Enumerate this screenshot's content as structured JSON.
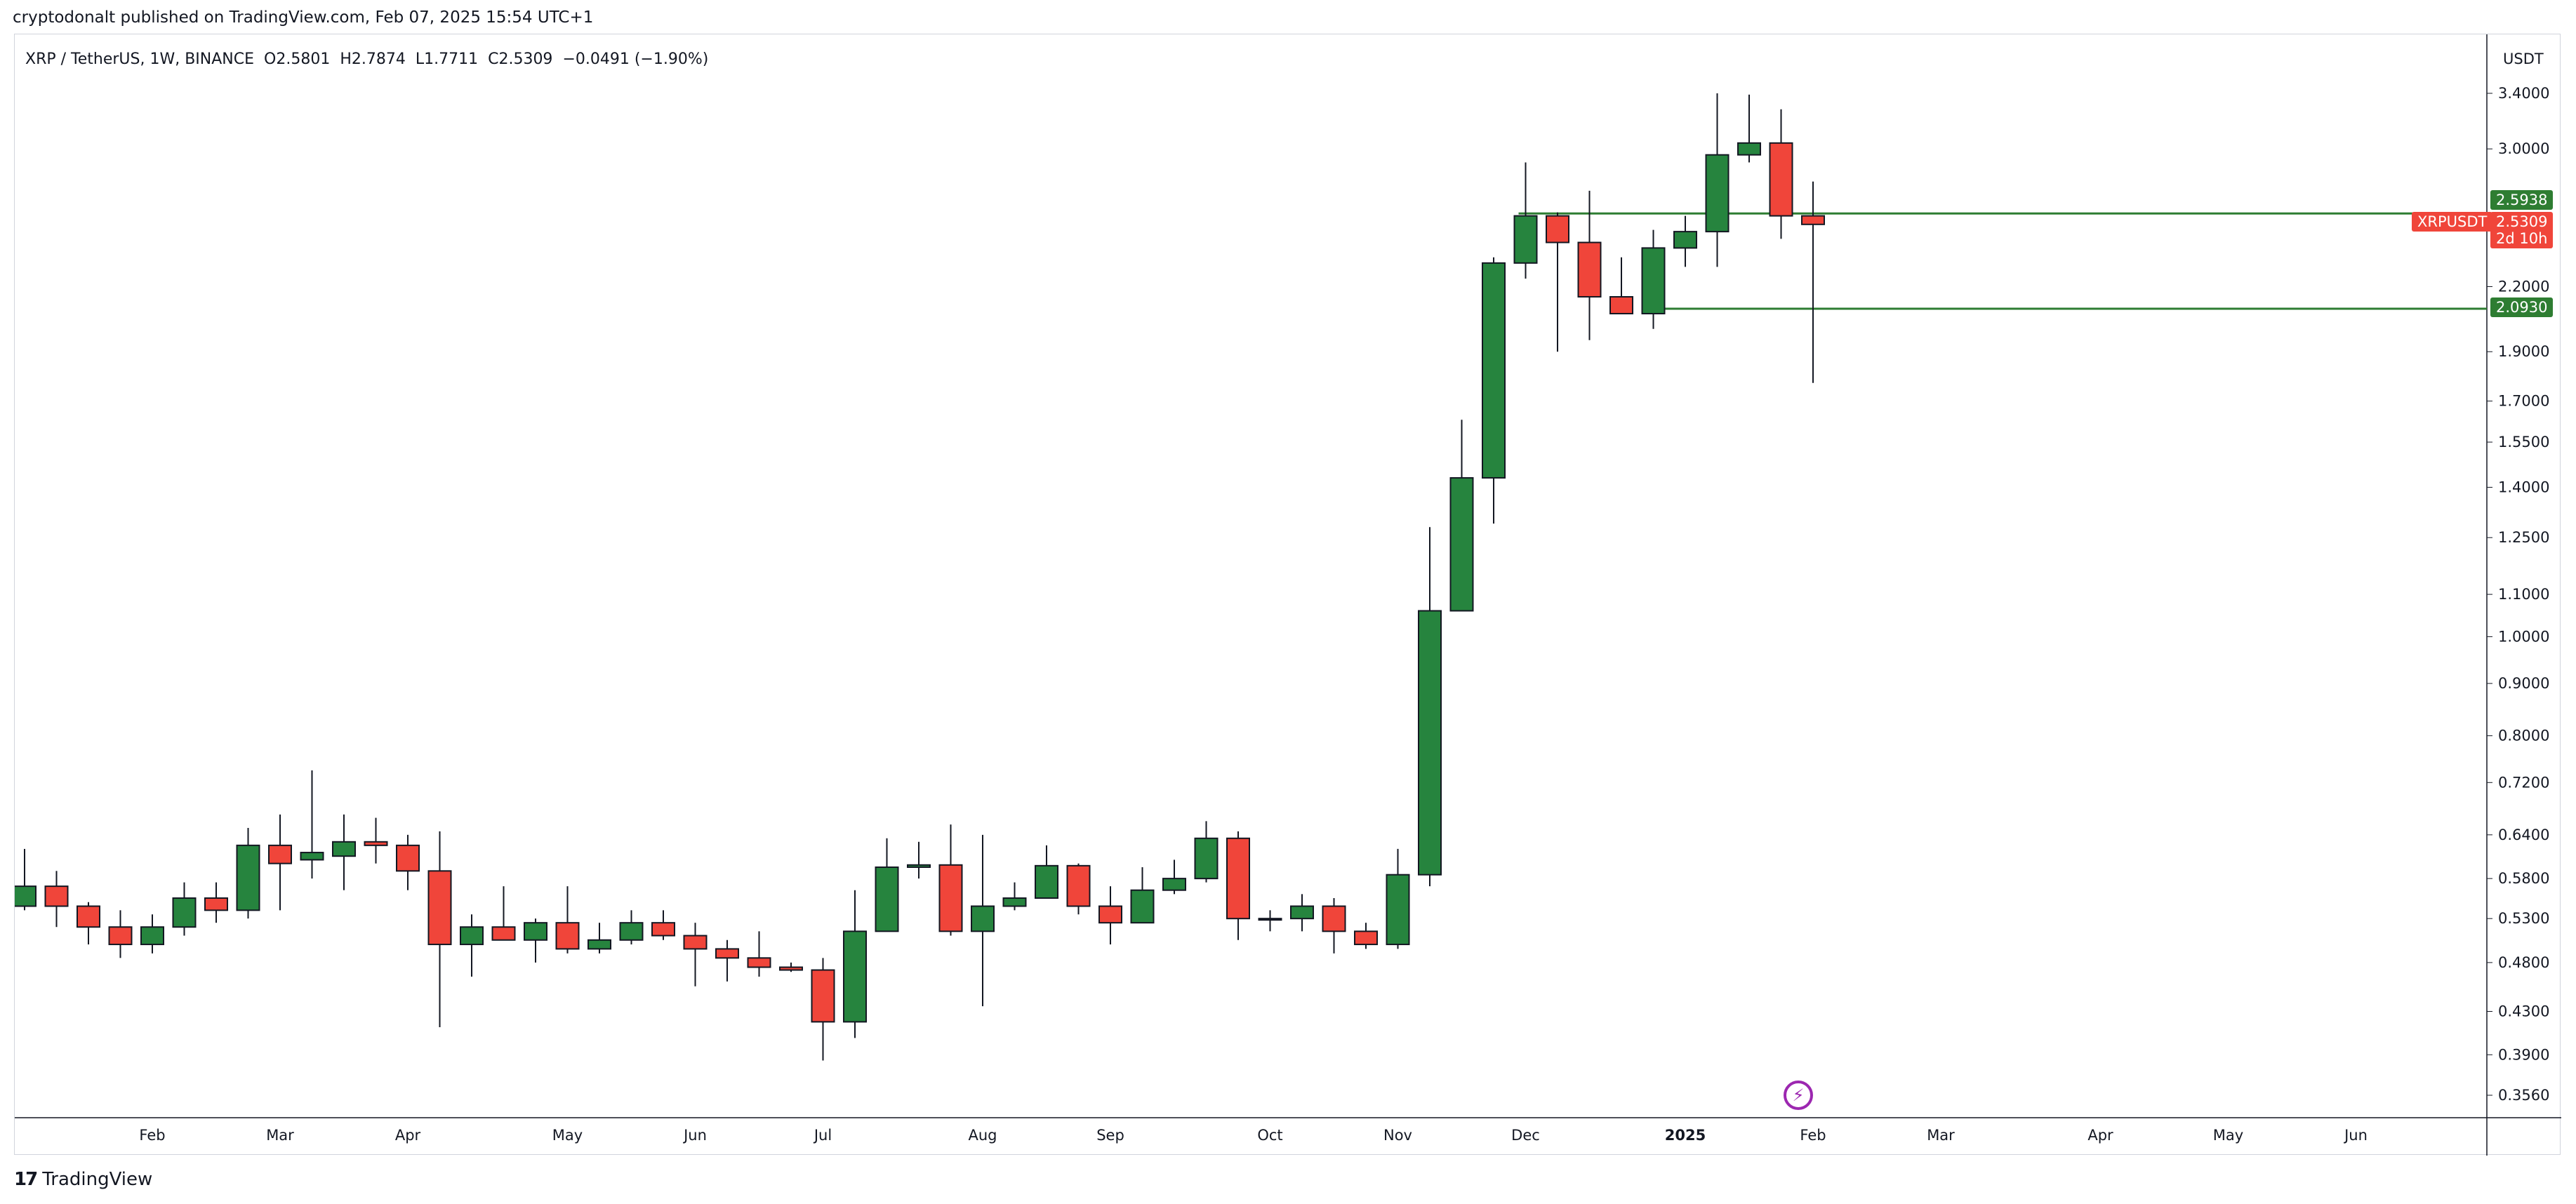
{
  "header": {
    "publish_line": "cryptodonalt published on TradingView.com, Feb 07, 2025 15:54 UTC+1"
  },
  "legend": {
    "symbol": "XRP / TetherUS, 1W, BINANCE",
    "open": "O2.5801",
    "high": "H2.7874",
    "low": "L1.7711",
    "close": "C2.5309",
    "change": "−0.0491 (−1.90%)"
  },
  "axis": {
    "unit": "USDT"
  },
  "price_tags": {
    "level_upper": "2.5938",
    "symbol_label": "XRPUSDT",
    "last_price": "2.5309",
    "countdown": "2d 10h",
    "level_lower": "2.0930"
  },
  "footer": {
    "brand": "TradingView"
  },
  "colors": {
    "up": "#26843e",
    "down": "#f0453a",
    "level_line": "#2e7d32",
    "last_price": "#f0453a",
    "watermark": "#9c27b0"
  },
  "chart_data": {
    "type": "candlestick",
    "yscale": "log",
    "ylim": [
      0.335,
      3.85
    ],
    "y_ticks": [
      "3.4000",
      "3.0000",
      "2.2000",
      "1.9000",
      "1.7000",
      "1.5500",
      "1.4000",
      "1.2500",
      "1.1000",
      "1.0000",
      "0.9000",
      "0.8000",
      "0.7200",
      "0.6400",
      "0.5800",
      "0.5300",
      "0.4800",
      "0.4300",
      "0.3900",
      "0.3560"
    ],
    "x_labels": [
      {
        "label": "Feb",
        "week": 4
      },
      {
        "label": "Mar",
        "week": 8
      },
      {
        "label": "Apr",
        "week": 12
      },
      {
        "label": "May",
        "week": 17
      },
      {
        "label": "Jun",
        "week": 21
      },
      {
        "label": "Jul",
        "week": 25
      },
      {
        "label": "Aug",
        "week": 30
      },
      {
        "label": "Sep",
        "week": 34
      },
      {
        "label": "Oct",
        "week": 39
      },
      {
        "label": "Nov",
        "week": 43
      },
      {
        "label": "Dec",
        "week": 47
      },
      {
        "label": "2025",
        "week": 52
      },
      {
        "label": "Feb",
        "week": 56
      },
      {
        "label": "Mar",
        "week": 60
      },
      {
        "label": "Apr",
        "week": 65
      },
      {
        "label": "May",
        "week": 69
      },
      {
        "label": "Jun",
        "week": 73
      }
    ],
    "horizontal_levels": [
      2.5938,
      2.093
    ],
    "last_price": 2.5309,
    "candles": [
      {
        "o": 0.545,
        "h": 0.62,
        "l": 0.54,
        "c": 0.57
      },
      {
        "o": 0.57,
        "h": 0.59,
        "l": 0.52,
        "c": 0.545
      },
      {
        "o": 0.545,
        "h": 0.55,
        "l": 0.5,
        "c": 0.52
      },
      {
        "o": 0.52,
        "h": 0.54,
        "l": 0.485,
        "c": 0.5
      },
      {
        "o": 0.5,
        "h": 0.535,
        "l": 0.49,
        "c": 0.52
      },
      {
        "o": 0.52,
        "h": 0.575,
        "l": 0.51,
        "c": 0.555
      },
      {
        "o": 0.555,
        "h": 0.575,
        "l": 0.525,
        "c": 0.54
      },
      {
        "o": 0.54,
        "h": 0.65,
        "l": 0.53,
        "c": 0.625
      },
      {
        "o": 0.625,
        "h": 0.67,
        "l": 0.54,
        "c": 0.6
      },
      {
        "o": 0.605,
        "h": 0.74,
        "l": 0.58,
        "c": 0.615
      },
      {
        "o": 0.61,
        "h": 0.67,
        "l": 0.565,
        "c": 0.63
      },
      {
        "o": 0.63,
        "h": 0.665,
        "l": 0.6,
        "c": 0.625
      },
      {
        "o": 0.625,
        "h": 0.64,
        "l": 0.565,
        "c": 0.59
      },
      {
        "o": 0.59,
        "h": 0.645,
        "l": 0.415,
        "c": 0.5
      },
      {
        "o": 0.5,
        "h": 0.535,
        "l": 0.465,
        "c": 0.52
      },
      {
        "o": 0.52,
        "h": 0.57,
        "l": 0.505,
        "c": 0.505
      },
      {
        "o": 0.505,
        "h": 0.53,
        "l": 0.48,
        "c": 0.525
      },
      {
        "o": 0.525,
        "h": 0.57,
        "l": 0.49,
        "c": 0.495
      },
      {
        "o": 0.495,
        "h": 0.525,
        "l": 0.49,
        "c": 0.505
      },
      {
        "o": 0.505,
        "h": 0.54,
        "l": 0.5,
        "c": 0.525
      },
      {
        "o": 0.525,
        "h": 0.54,
        "l": 0.505,
        "c": 0.51
      },
      {
        "o": 0.51,
        "h": 0.525,
        "l": 0.455,
        "c": 0.495
      },
      {
        "o": 0.495,
        "h": 0.505,
        "l": 0.46,
        "c": 0.485
      },
      {
        "o": 0.485,
        "h": 0.515,
        "l": 0.465,
        "c": 0.475
      },
      {
        "o": 0.475,
        "h": 0.48,
        "l": 0.47,
        "c": 0.472
      },
      {
        "o": 0.472,
        "h": 0.485,
        "l": 0.385,
        "c": 0.42
      },
      {
        "o": 0.42,
        "h": 0.565,
        "l": 0.405,
        "c": 0.515
      },
      {
        "o": 0.515,
        "h": 0.635,
        "l": 0.515,
        "c": 0.595
      },
      {
        "o": 0.595,
        "h": 0.63,
        "l": 0.58,
        "c": 0.598
      },
      {
        "o": 0.598,
        "h": 0.655,
        "l": 0.51,
        "c": 0.515
      },
      {
        "o": 0.515,
        "h": 0.64,
        "l": 0.435,
        "c": 0.545
      },
      {
        "o": 0.545,
        "h": 0.575,
        "l": 0.54,
        "c": 0.555
      },
      {
        "o": 0.555,
        "h": 0.625,
        "l": 0.555,
        "c": 0.597
      },
      {
        "o": 0.597,
        "h": 0.6,
        "l": 0.535,
        "c": 0.545
      },
      {
        "o": 0.545,
        "h": 0.57,
        "l": 0.5,
        "c": 0.525
      },
      {
        "o": 0.525,
        "h": 0.595,
        "l": 0.525,
        "c": 0.565
      },
      {
        "o": 0.565,
        "h": 0.605,
        "l": 0.56,
        "c": 0.58
      },
      {
        "o": 0.58,
        "h": 0.66,
        "l": 0.575,
        "c": 0.635
      },
      {
        "o": 0.635,
        "h": 0.645,
        "l": 0.505,
        "c": 0.53
      },
      {
        "o": 0.53,
        "h": 0.54,
        "l": 0.515,
        "c": 0.53
      },
      {
        "o": 0.53,
        "h": 0.56,
        "l": 0.515,
        "c": 0.545
      },
      {
        "o": 0.545,
        "h": 0.555,
        "l": 0.49,
        "c": 0.515
      },
      {
        "o": 0.515,
        "h": 0.525,
        "l": 0.495,
        "c": 0.5
      },
      {
        "o": 0.5,
        "h": 0.62,
        "l": 0.495,
        "c": 0.585
      },
      {
        "o": 0.585,
        "h": 1.28,
        "l": 0.57,
        "c": 1.06
      },
      {
        "o": 1.06,
        "h": 1.63,
        "l": 1.06,
        "c": 1.43
      },
      {
        "o": 1.43,
        "h": 2.35,
        "l": 1.29,
        "c": 2.32
      },
      {
        "o": 2.32,
        "h": 2.91,
        "l": 2.24,
        "c": 2.58
      },
      {
        "o": 2.58,
        "h": 2.6,
        "l": 1.9,
        "c": 2.43
      },
      {
        "o": 2.43,
        "h": 2.73,
        "l": 1.95,
        "c": 2.15
      },
      {
        "o": 2.15,
        "h": 2.35,
        "l": 2.07,
        "c": 2.07
      },
      {
        "o": 2.07,
        "h": 2.5,
        "l": 2.0,
        "c": 2.4
      },
      {
        "o": 2.4,
        "h": 2.58,
        "l": 2.3,
        "c": 2.49
      },
      {
        "o": 2.49,
        "h": 3.4,
        "l": 2.3,
        "c": 2.96
      },
      {
        "o": 2.96,
        "h": 3.39,
        "l": 2.91,
        "c": 3.04
      },
      {
        "o": 3.04,
        "h": 3.28,
        "l": 2.45,
        "c": 2.58
      },
      {
        "o": 2.5801,
        "h": 2.7874,
        "l": 1.7711,
        "c": 2.5309
      }
    ]
  }
}
